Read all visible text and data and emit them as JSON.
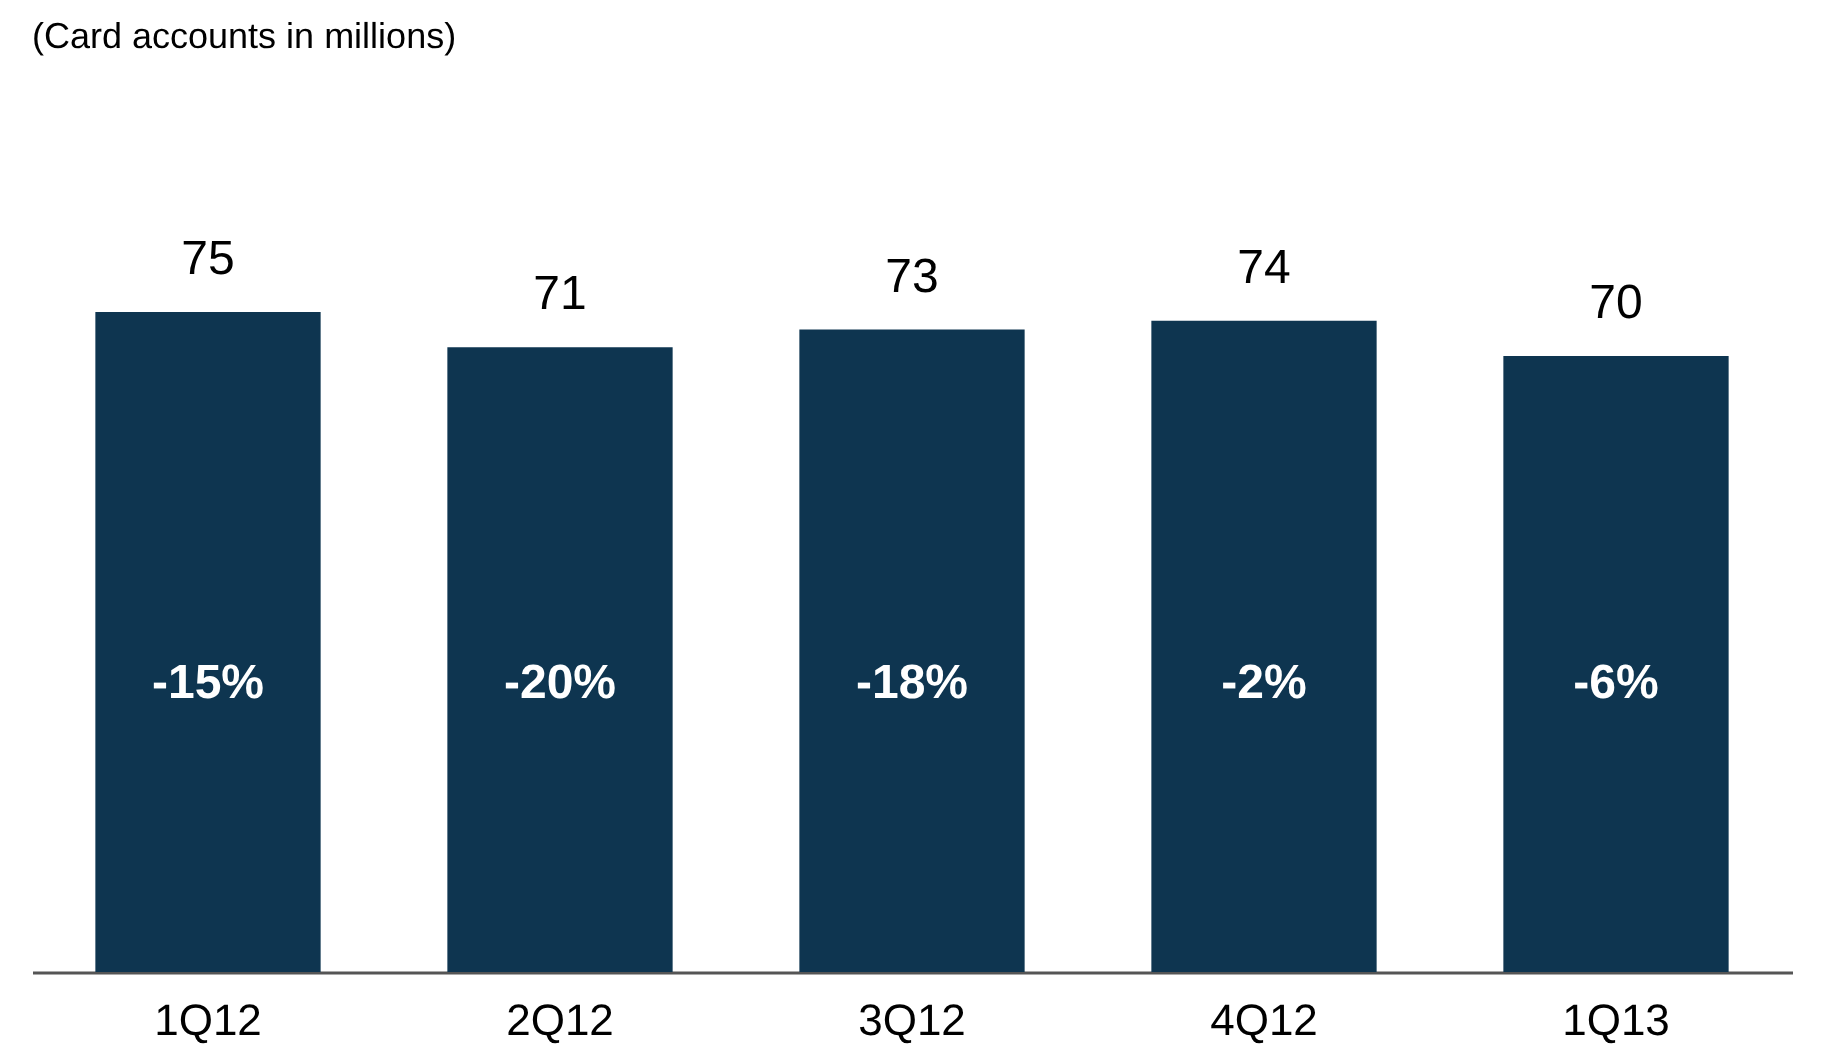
{
  "chart_data": {
    "type": "bar",
    "title": "(Card accounts in millions)",
    "categories": [
      "1Q12",
      "2Q12",
      "3Q12",
      "4Q12",
      "1Q13"
    ],
    "values": [
      75,
      71,
      73,
      74,
      70
    ],
    "color": "#0e3550",
    "tick_labels": "x",
    "data_labels": true,
    "grid": false,
    "annotations": [
      "-15%",
      "-20%",
      "-18%",
      "-2%",
      "-6%"
    ]
  }
}
